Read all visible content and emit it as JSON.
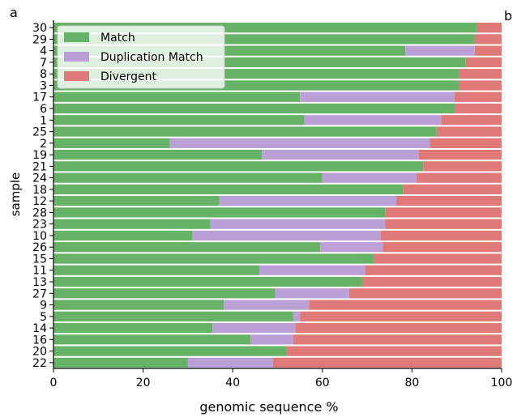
{
  "panel_labels": {
    "left": "a",
    "right": "b"
  },
  "colors": {
    "match": "#66b266",
    "duplication": "#bba0d8",
    "divergent": "#e07a78"
  },
  "chart_data": {
    "type": "bar",
    "orientation": "horizontal",
    "stacked": true,
    "xlabel": "genomic sequence %",
    "ylabel": "sample",
    "xlim": [
      0,
      100
    ],
    "xticks": [
      0,
      20,
      40,
      60,
      80,
      100
    ],
    "legend_position": "top-left",
    "grid": false,
    "categories": [
      "30",
      "29",
      "4",
      "7",
      "8",
      "3",
      "17",
      "6",
      "1",
      "25",
      "2",
      "19",
      "21",
      "24",
      "18",
      "12",
      "28",
      "23",
      "10",
      "26",
      "15",
      "11",
      "13",
      "27",
      "9",
      "5",
      "14",
      "16",
      "20",
      "22"
    ],
    "series": [
      {
        "name": "Match",
        "values": [
          94.5,
          94,
          78.5,
          92,
          90.5,
          90.5,
          55,
          89.5,
          56,
          85.5,
          26,
          46.5,
          82.5,
          60,
          78,
          37,
          74,
          35,
          31,
          59.5,
          71.5,
          46,
          69,
          49.5,
          38,
          53.5,
          35.5,
          44,
          52,
          30
        ]
      },
      {
        "name": "Duplication Match",
        "values": [
          0,
          0,
          15.5,
          0,
          0,
          0,
          34.5,
          0,
          30.5,
          0,
          58,
          35,
          0,
          21,
          0,
          39.5,
          0,
          39,
          42,
          14,
          0,
          23.5,
          0,
          16.5,
          19,
          1.5,
          18.5,
          9.5,
          0,
          19
        ]
      },
      {
        "name": "Divergent",
        "values": [
          5.5,
          6,
          6,
          8,
          9.5,
          9.5,
          10.5,
          10.5,
          13.5,
          14.5,
          16,
          18.5,
          17.5,
          19,
          22,
          23.5,
          26,
          26,
          27,
          26.5,
          28.5,
          30.5,
          31,
          34,
          43,
          45,
          46,
          46.5,
          48,
          51
        ]
      }
    ]
  }
}
